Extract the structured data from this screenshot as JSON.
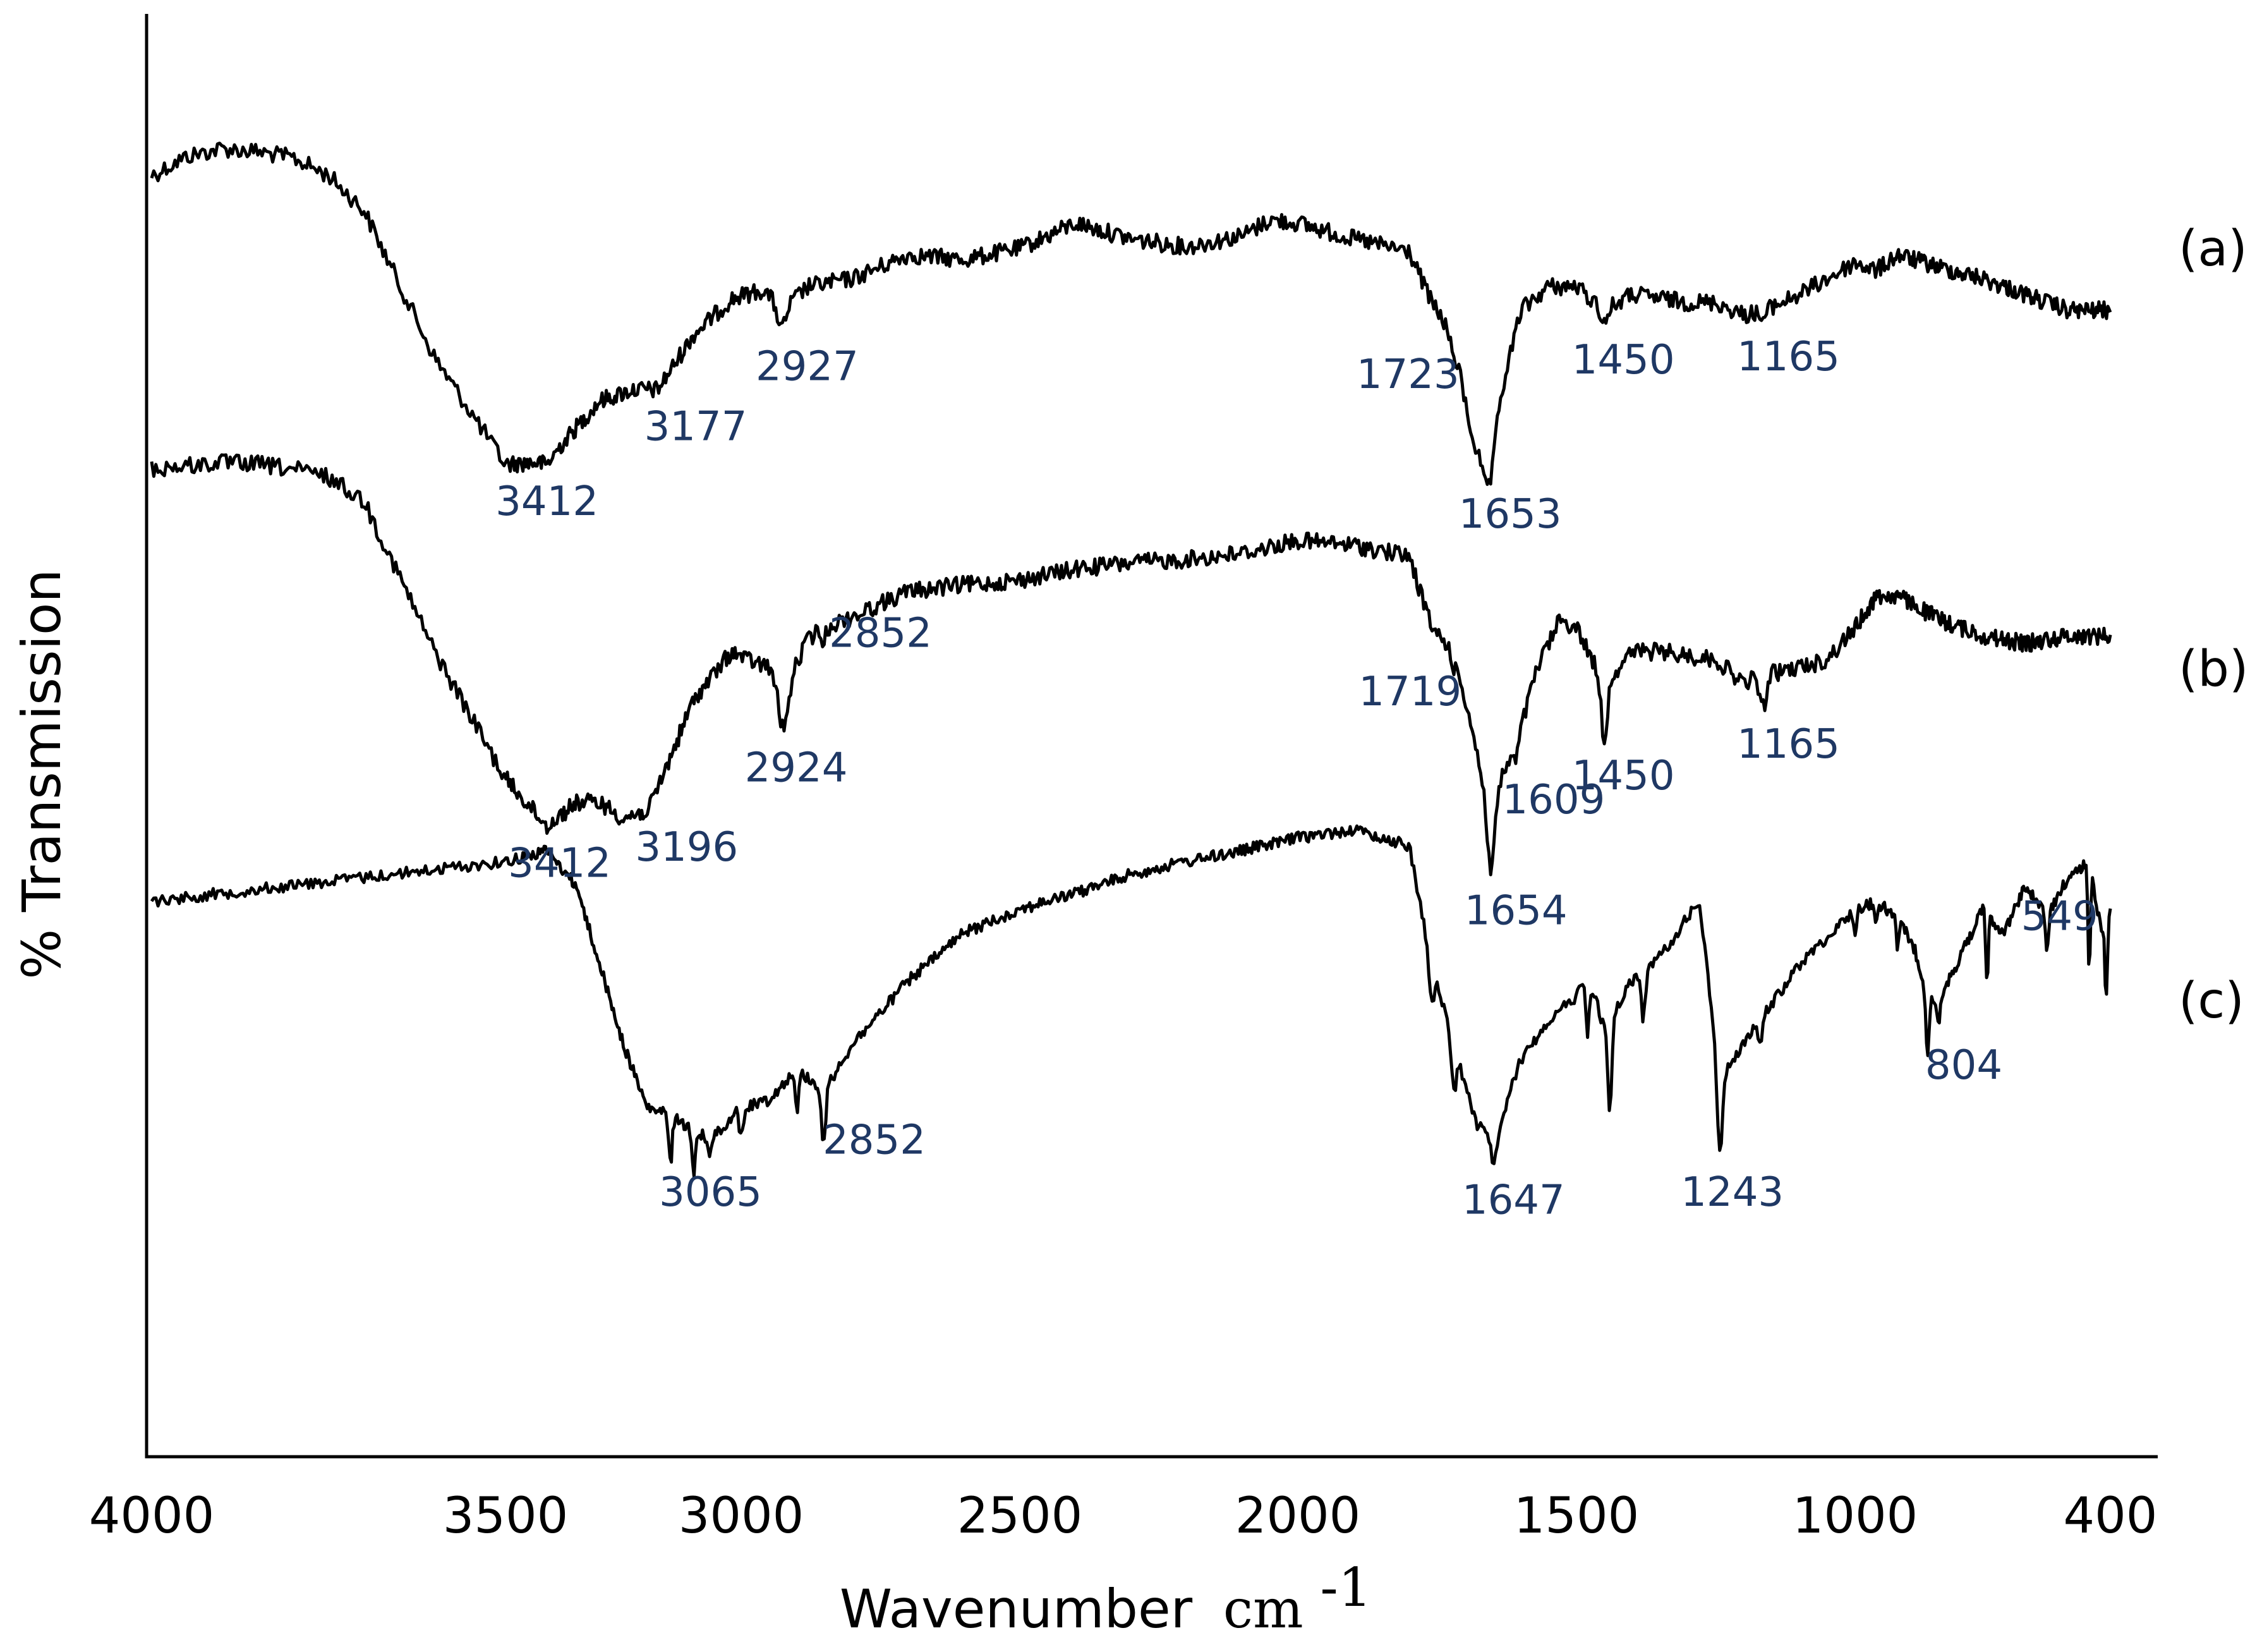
{
  "chart_data": {
    "type": "line",
    "xlabel": "Wavenumber",
    "xlabel_unit": "cm",
    "xlabel_unit_sup": "-1",
    "ylabel": "% Transmission",
    "xlim": [
      4000,
      400
    ],
    "x_reversed": true,
    "y_ticks_shown": false,
    "grid": false,
    "x_ticks": [
      {
        "value": 4000,
        "label": "4000"
      },
      {
        "value": 3500,
        "label": "3500"
      },
      {
        "value": 3000,
        "label": "3000"
      },
      {
        "value": 2500,
        "label": "2500"
      },
      {
        "value": 2000,
        "label": "2000"
      },
      {
        "value": 1500,
        "label": "1500"
      },
      {
        "value": 1000,
        "label": "1000"
      },
      {
        "value": 400,
        "label": "400"
      }
    ],
    "peak_label_color": "#1f3864",
    "series": [
      {
        "name": "(a)",
        "baseline": 0.09,
        "amplitude": 0.22,
        "noise": 0.006,
        "knots": [
          [
            4000,
            0.2
          ],
          [
            3950,
            0.08
          ],
          [
            3900,
            0.03
          ],
          [
            3850,
            0.05
          ],
          [
            3800,
            0.09
          ],
          [
            3750,
            0.2
          ],
          [
            3700,
            0.42
          ],
          [
            3600,
            1.35
          ],
          [
            3500,
            2.02
          ],
          [
            3412,
            2.0
          ],
          [
            3300,
            1.62
          ],
          [
            3230,
            1.55
          ],
          [
            3177,
            1.55
          ],
          [
            3100,
            1.2
          ],
          [
            3020,
            0.98
          ],
          [
            2960,
            0.92
          ],
          [
            2927,
            1.05
          ],
          [
            2880,
            0.9
          ],
          [
            2800,
            0.85
          ],
          [
            2700,
            0.7
          ],
          [
            2600,
            0.73
          ],
          [
            2500,
            0.66
          ],
          [
            2400,
            0.5
          ],
          [
            2300,
            0.6
          ],
          [
            2200,
            0.65
          ],
          [
            2100,
            0.58
          ],
          [
            2050,
            0.48
          ],
          [
            2000,
            0.5
          ],
          [
            1900,
            0.6
          ],
          [
            1800,
            0.68
          ],
          [
            1760,
            1.0
          ],
          [
            1723,
            1.2
          ],
          [
            1690,
            1.8
          ],
          [
            1665,
            2.1
          ],
          [
            1653,
            1.85
          ],
          [
            1600,
            1.05
          ],
          [
            1550,
            0.9
          ],
          [
            1500,
            0.9
          ],
          [
            1450,
            1.05
          ],
          [
            1400,
            0.95
          ],
          [
            1300,
            1.0
          ],
          [
            1250,
            1.0
          ],
          [
            1200,
            1.08
          ],
          [
            1165,
            1.05
          ],
          [
            1100,
            0.95
          ],
          [
            1000,
            0.75
          ],
          [
            950,
            0.8
          ],
          [
            900,
            0.7
          ],
          [
            800,
            0.78
          ],
          [
            700,
            0.85
          ],
          [
            600,
            0.95
          ],
          [
            500,
            1.05
          ],
          [
            400,
            1.05
          ]
        ]
      },
      {
        "name": "(b)",
        "baseline": 0.31,
        "amplitude": 0.22,
        "noise": 0.006,
        "knots": [
          [
            4000,
            0.05
          ],
          [
            3950,
            0.03
          ],
          [
            3900,
            0.01
          ],
          [
            3850,
            0.02
          ],
          [
            3800,
            0.05
          ],
          [
            3750,
            0.1
          ],
          [
            3700,
            0.25
          ],
          [
            3600,
            1.2
          ],
          [
            3500,
            2.0
          ],
          [
            3412,
            2.3
          ],
          [
            3350,
            2.15
          ],
          [
            3300,
            2.15
          ],
          [
            3250,
            2.25
          ],
          [
            3196,
            2.2
          ],
          [
            3100,
            1.5
          ],
          [
            3020,
            1.2
          ],
          [
            2990,
            1.25
          ],
          [
            2950,
            1.3
          ],
          [
            2924,
            1.45
          ],
          [
            2880,
            1.12
          ],
          [
            2852,
            1.05
          ],
          [
            2800,
            0.98
          ],
          [
            2700,
            0.82
          ],
          [
            2600,
            0.78
          ],
          [
            2500,
            0.75
          ],
          [
            2400,
            0.68
          ],
          [
            2300,
            0.64
          ],
          [
            2200,
            0.62
          ],
          [
            2100,
            0.58
          ],
          [
            2000,
            0.5
          ],
          [
            1900,
            0.53
          ],
          [
            1800,
            0.6
          ],
          [
            1760,
            1.05
          ],
          [
            1719,
            1.2
          ],
          [
            1680,
            1.8
          ],
          [
            1654,
            2.3
          ],
          [
            1630,
            1.95
          ],
          [
            1609,
            1.8
          ],
          [
            1570,
            1.3
          ],
          [
            1530,
            1.0
          ],
          [
            1500,
            1.05
          ],
          [
            1450,
            1.4
          ],
          [
            1400,
            1.2
          ],
          [
            1350,
            1.2
          ],
          [
            1250,
            1.25
          ],
          [
            1200,
            1.4
          ],
          [
            1165,
            1.35
          ],
          [
            1100,
            1.3
          ],
          [
            1050,
            1.25
          ],
          [
            1000,
            1.05
          ],
          [
            950,
            0.85
          ],
          [
            900,
            0.85
          ],
          [
            800,
            1.0
          ],
          [
            700,
            1.1
          ],
          [
            600,
            1.15
          ],
          [
            500,
            1.1
          ],
          [
            400,
            1.1
          ]
        ]
      },
      {
        "name": "(c)",
        "baseline": 0.56,
        "amplitude": 0.22,
        "noise": 0.004,
        "knots": [
          [
            4000,
            0.5
          ],
          [
            3800,
            0.4
          ],
          [
            3600,
            0.3
          ],
          [
            3500,
            0.25
          ],
          [
            3412,
            0.18
          ],
          [
            3350,
            0.4
          ],
          [
            3300,
            0.9
          ],
          [
            3250,
            1.4
          ],
          [
            3200,
            1.8
          ],
          [
            3150,
            1.85
          ],
          [
            3100,
            1.95
          ],
          [
            3065,
            2.0
          ],
          [
            3000,
            1.8
          ],
          [
            2950,
            1.75
          ],
          [
            2900,
            1.55
          ],
          [
            2852,
            1.7
          ],
          [
            2800,
            1.4
          ],
          [
            2700,
            1.0
          ],
          [
            2600,
            0.7
          ],
          [
            2500,
            0.55
          ],
          [
            2400,
            0.45
          ],
          [
            2300,
            0.33
          ],
          [
            2200,
            0.25
          ],
          [
            2100,
            0.18
          ],
          [
            2000,
            0.1
          ],
          [
            1900,
            0.05
          ],
          [
            1800,
            0.15
          ],
          [
            1760,
            0.9
          ],
          [
            1700,
            1.65
          ],
          [
            1680,
            1.9
          ],
          [
            1647,
            2.0
          ],
          [
            1600,
            1.5
          ],
          [
            1550,
            1.25
          ],
          [
            1500,
            1.1
          ],
          [
            1480,
            0.95
          ],
          [
            1450,
            1.3
          ],
          [
            1400,
            1.0
          ],
          [
            1350,
            0.85
          ],
          [
            1300,
            0.6
          ],
          [
            1280,
            0.5
          ],
          [
            1243,
            1.6
          ],
          [
            1200,
            1.4
          ],
          [
            1150,
            1.15
          ],
          [
            1100,
            0.9
          ],
          [
            1000,
            0.55
          ],
          [
            950,
            0.5
          ],
          [
            900,
            0.6
          ],
          [
            860,
            0.8
          ],
          [
            830,
            1.1
          ],
          [
            804,
            1.15
          ],
          [
            780,
            1.0
          ],
          [
            700,
            0.55
          ],
          [
            650,
            0.7
          ],
          [
            600,
            0.4
          ],
          [
            549,
            0.6
          ],
          [
            500,
            0.35
          ],
          [
            450,
            0.25
          ],
          [
            420,
            0.7
          ],
          [
            400,
            0.55
          ]
        ]
      }
    ],
    "dips": [
      {
        "series": 0,
        "x": 3412,
        "depth": 0.02,
        "width": 18
      },
      {
        "series": 0,
        "x": 2927,
        "depth": 0.12,
        "width": 10
      },
      {
        "series": 0,
        "x": 1723,
        "depth": 0.1,
        "width": 8
      },
      {
        "series": 0,
        "x": 1653,
        "depth": 0.25,
        "width": 10
      },
      {
        "series": 0,
        "x": 1450,
        "depth": 0.08,
        "width": 8
      },
      {
        "series": 0,
        "x": 1165,
        "depth": 0.06,
        "width": 8
      },
      {
        "series": 1,
        "x": 2924,
        "depth": 0.25,
        "width": 12
      },
      {
        "series": 1,
        "x": 2852,
        "depth": 0.08,
        "width": 6
      },
      {
        "series": 1,
        "x": 1719,
        "depth": 0.1,
        "width": 8
      },
      {
        "series": 1,
        "x": 1654,
        "depth": 0.3,
        "width": 8
      },
      {
        "series": 1,
        "x": 1609,
        "depth": 0.1,
        "width": 6
      },
      {
        "series": 1,
        "x": 1450,
        "depth": 0.35,
        "width": 8
      },
      {
        "series": 1,
        "x": 1165,
        "depth": 0.2,
        "width": 8
      },
      {
        "series": 2,
        "x": 3150,
        "depth": 0.3,
        "width": 5
      },
      {
        "series": 2,
        "x": 3100,
        "depth": 0.25,
        "width": 5
      },
      {
        "series": 2,
        "x": 3065,
        "depth": 0.1,
        "width": 5
      },
      {
        "series": 2,
        "x": 3000,
        "depth": 0.2,
        "width": 5
      },
      {
        "series": 2,
        "x": 2900,
        "depth": 0.3,
        "width": 4
      },
      {
        "series": 2,
        "x": 2852,
        "depth": 0.35,
        "width": 5
      },
      {
        "series": 2,
        "x": 1760,
        "depth": 0.25,
        "width": 6
      },
      {
        "series": 2,
        "x": 1720,
        "depth": 0.3,
        "width": 6
      },
      {
        "series": 2,
        "x": 1647,
        "depth": 0.15,
        "width": 10
      },
      {
        "series": 2,
        "x": 1480,
        "depth": 0.4,
        "width": 4
      },
      {
        "series": 2,
        "x": 1440,
        "depth": 0.6,
        "width": 5
      },
      {
        "series": 2,
        "x": 1380,
        "depth": 0.3,
        "width": 5
      },
      {
        "series": 2,
        "x": 1243,
        "depth": 0.5,
        "width": 7
      },
      {
        "series": 2,
        "x": 1170,
        "depth": 0.15,
        "width": 5
      },
      {
        "series": 2,
        "x": 1000,
        "depth": 0.15,
        "width": 5
      },
      {
        "series": 2,
        "x": 950,
        "depth": 0.15,
        "width": 5
      },
      {
        "series": 2,
        "x": 900,
        "depth": 0.2,
        "width": 5
      },
      {
        "series": 2,
        "x": 830,
        "depth": 0.35,
        "width": 5
      },
      {
        "series": 2,
        "x": 804,
        "depth": 0.15,
        "width": 5
      },
      {
        "series": 2,
        "x": 690,
        "depth": 0.45,
        "width": 4
      },
      {
        "series": 2,
        "x": 549,
        "depth": 0.2,
        "width": 5
      },
      {
        "series": 2,
        "x": 450,
        "depth": 0.7,
        "width": 4
      },
      {
        "series": 2,
        "x": 410,
        "depth": 0.5,
        "width": 4
      }
    ],
    "annotations": [
      {
        "series": 0,
        "x": 3412,
        "text": "3412",
        "pos": "below",
        "dx": 0
      },
      {
        "series": 0,
        "x": 3177,
        "text": "3177",
        "pos": "below",
        "dx": 60
      },
      {
        "series": 0,
        "x": 2927,
        "text": "2927",
        "pos": "below",
        "dx": 40
      },
      {
        "series": 0,
        "x": 1723,
        "text": "1723",
        "pos": "left",
        "dx": -70
      },
      {
        "series": 0,
        "x": 1653,
        "text": "1653",
        "pos": "below",
        "dx": 30
      },
      {
        "series": 0,
        "x": 1450,
        "text": "1450",
        "pos": "below",
        "dx": 30
      },
      {
        "series": 0,
        "x": 1165,
        "text": "1165",
        "pos": "below",
        "dx": 40
      },
      {
        "series": 1,
        "x": 3412,
        "text": "3412",
        "pos": "below",
        "dx": 20
      },
      {
        "series": 1,
        "x": 3196,
        "text": "3196",
        "pos": "below",
        "dx": 60
      },
      {
        "series": 1,
        "x": 2924,
        "text": "2924",
        "pos": "below",
        "dx": 20
      },
      {
        "series": 1,
        "x": 2852,
        "text": "2852",
        "pos": "right",
        "dx": 90
      },
      {
        "series": 1,
        "x": 1719,
        "text": "1719",
        "pos": "left",
        "dx": -70
      },
      {
        "series": 1,
        "x": 1654,
        "text": "1654",
        "pos": "below",
        "dx": 40
      },
      {
        "series": 1,
        "x": 1609,
        "text": "1609",
        "pos": "below",
        "dx": 60
      },
      {
        "series": 1,
        "x": 1450,
        "text": "1450",
        "pos": "below",
        "dx": 30
      },
      {
        "series": 1,
        "x": 1165,
        "text": "1165",
        "pos": "below",
        "dx": 40
      },
      {
        "series": 2,
        "x": 3065,
        "text": "3065",
        "pos": "below",
        "dx": 0
      },
      {
        "series": 2,
        "x": 2852,
        "text": "2852",
        "pos": "right",
        "dx": 80
      },
      {
        "series": 2,
        "x": 1647,
        "text": "1647",
        "pos": "below",
        "dx": 30
      },
      {
        "series": 2,
        "x": 1243,
        "text": "1243",
        "pos": "below",
        "dx": 20
      },
      {
        "series": 2,
        "x": 804,
        "text": "804",
        "pos": "below",
        "dx": 40
      },
      {
        "series": 2,
        "x": 549,
        "text": "549",
        "pos": "above-right",
        "dx": 20
      }
    ]
  }
}
